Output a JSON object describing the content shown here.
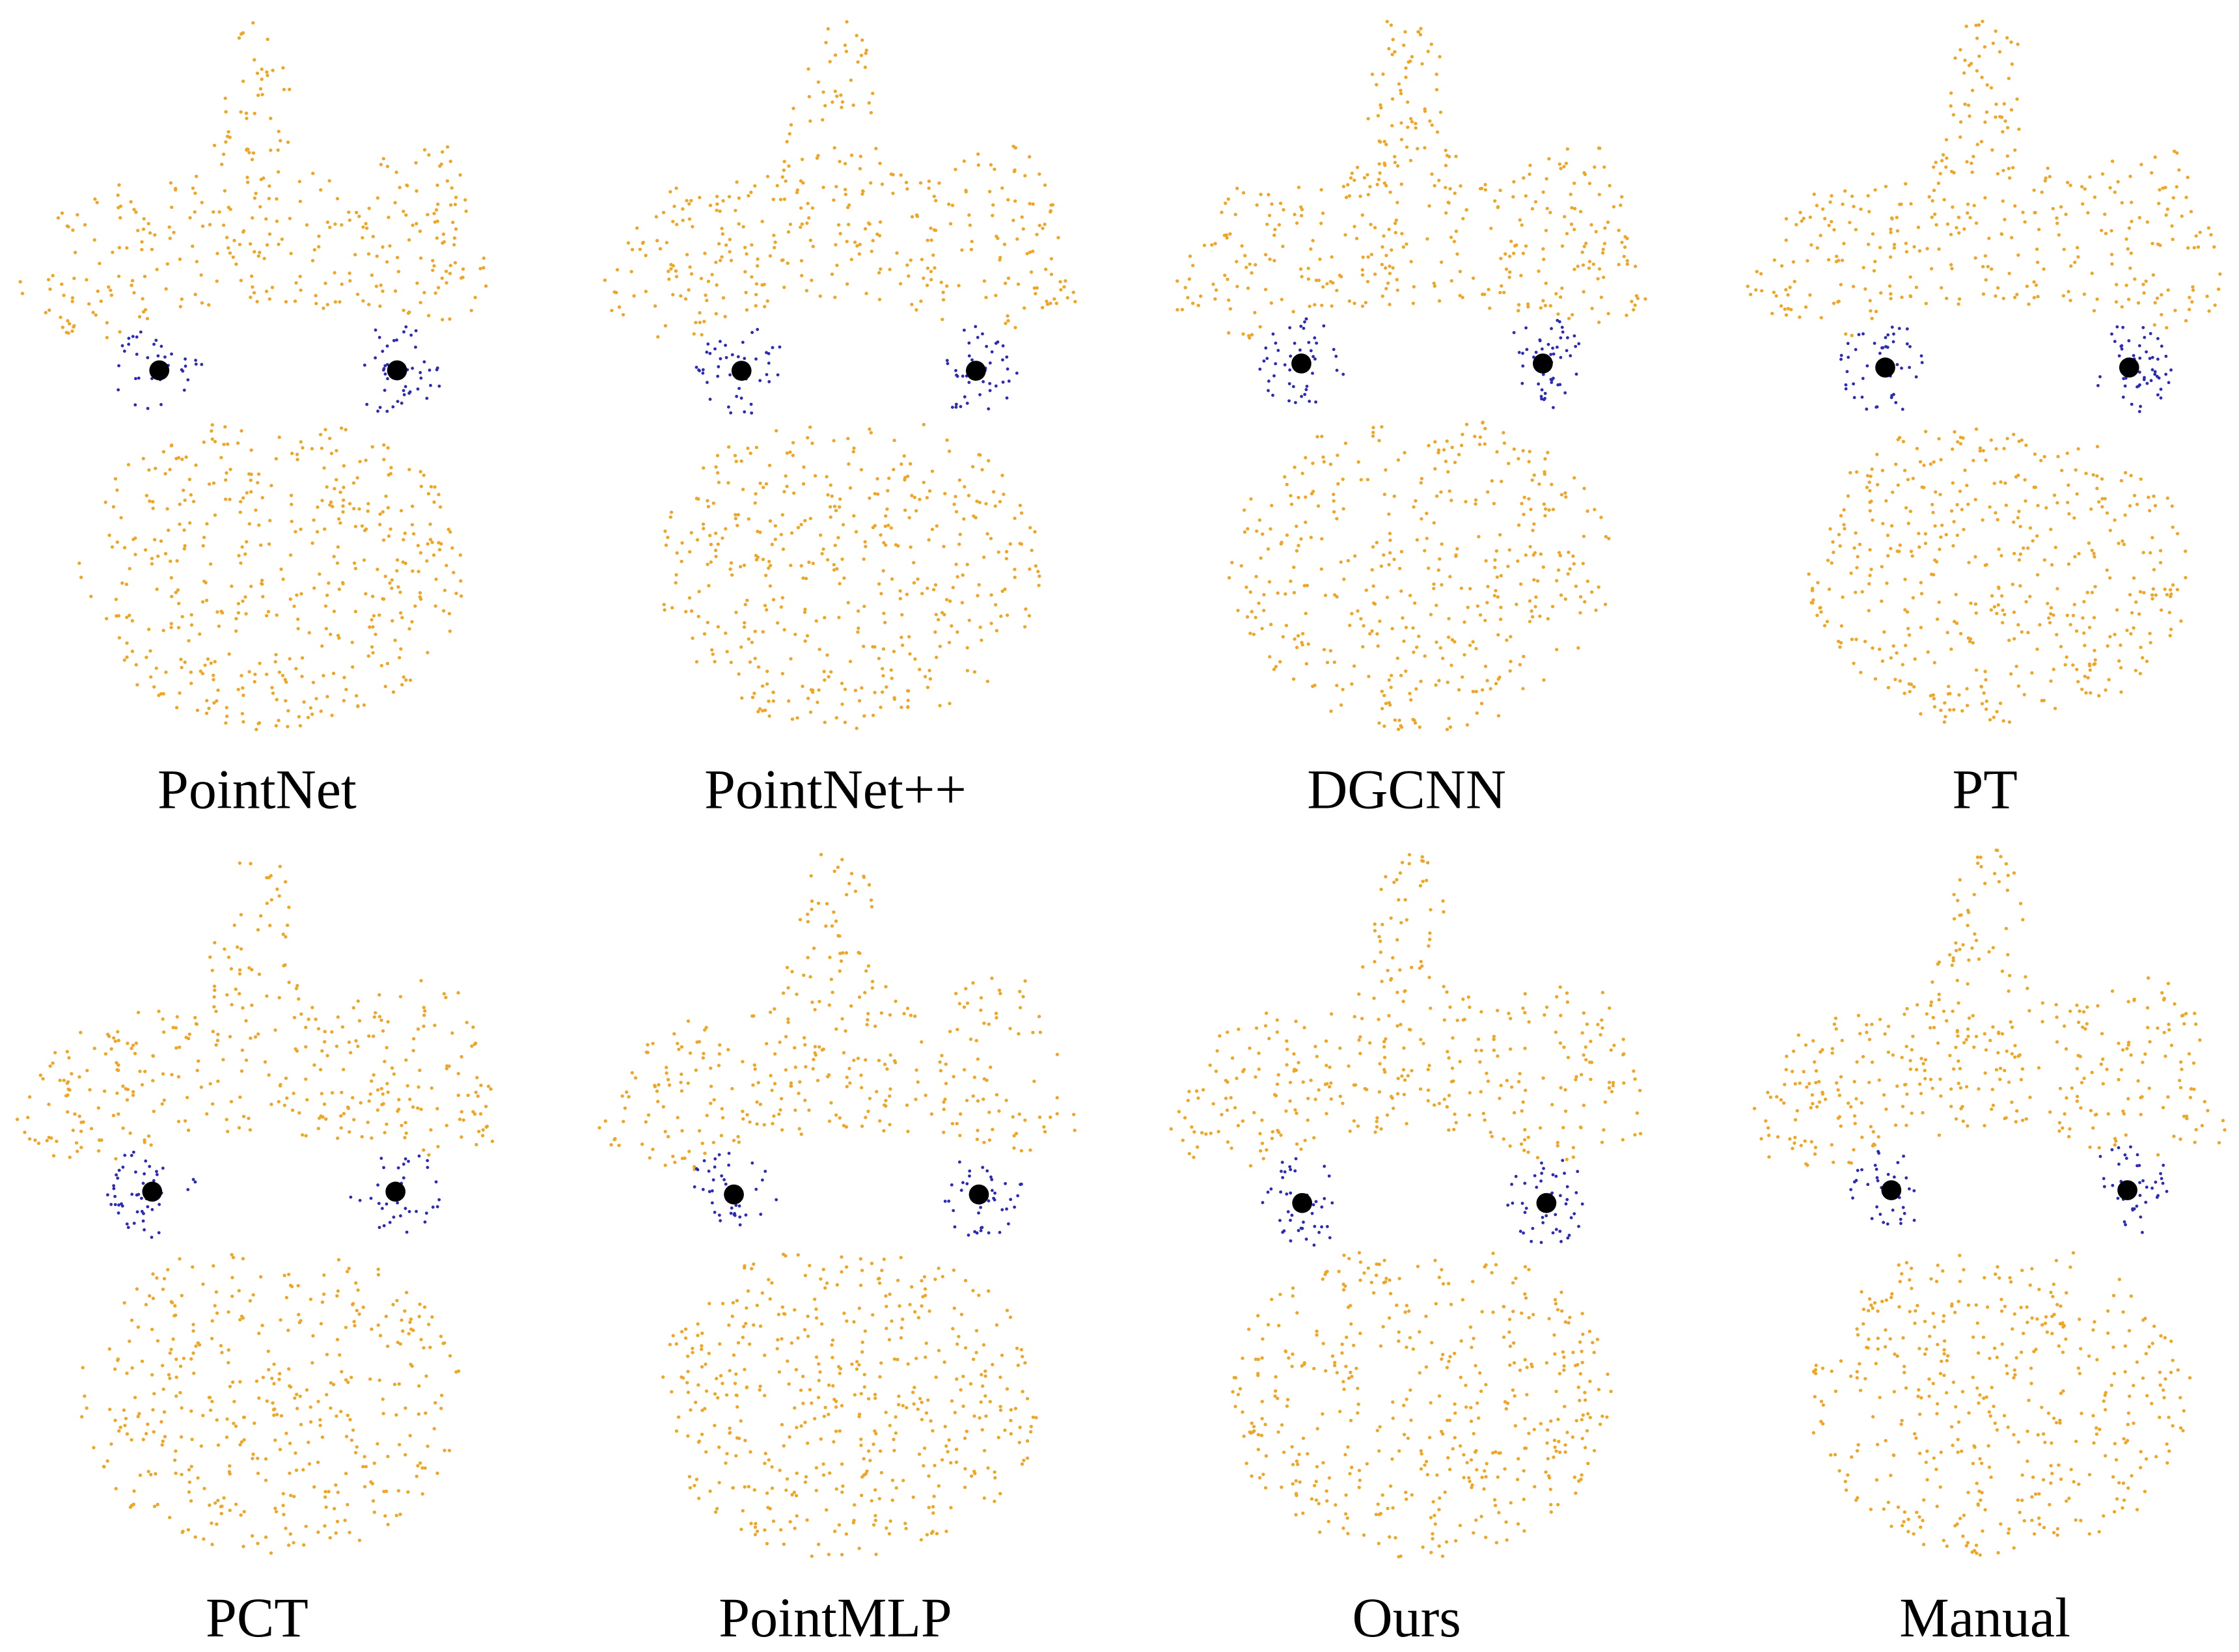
{
  "panels": [
    {
      "label": "PointNet"
    },
    {
      "label": "PointNet++"
    },
    {
      "label": "DGCNN"
    },
    {
      "label": "PT"
    },
    {
      "label": "PCT"
    },
    {
      "label": "PointMLP"
    },
    {
      "label": "Ours"
    },
    {
      "label": "Manual"
    }
  ]
}
